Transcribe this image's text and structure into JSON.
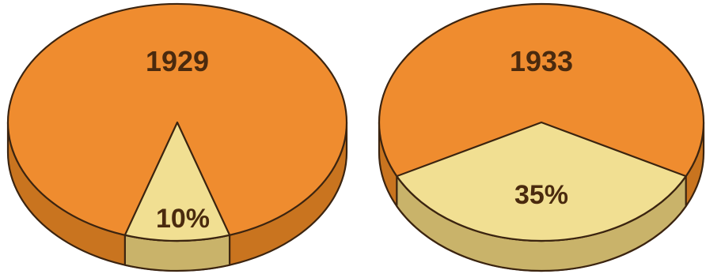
{
  "colors": {
    "main_top": "#ef8c2f",
    "main_side": "#c9741f",
    "slice_top": "#f1df92",
    "slice_side": "#c9b36a",
    "outline": "#3b2410"
  },
  "chart_data": [
    {
      "type": "pie",
      "title": "1929",
      "slices": [
        {
          "label": "",
          "value": 90
        },
        {
          "label": "10%",
          "value": 10
        }
      ]
    },
    {
      "type": "pie",
      "title": "1933",
      "slices": [
        {
          "label": "",
          "value": 65
        },
        {
          "label": "35%",
          "value": 35
        }
      ]
    }
  ]
}
